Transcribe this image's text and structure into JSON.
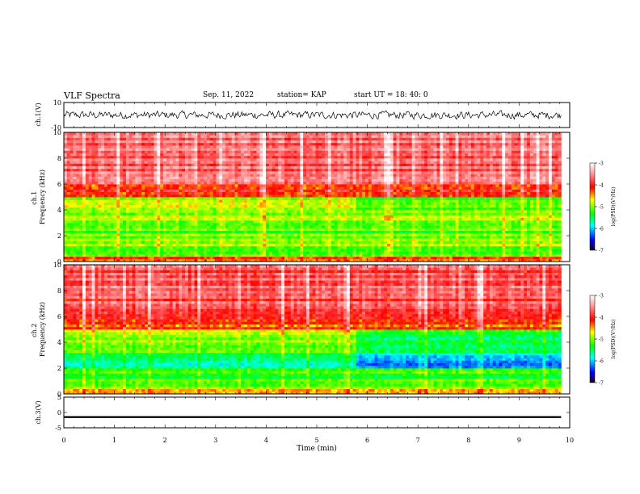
{
  "header": {
    "title": "VLF Spectra",
    "date": "Sep. 11, 2022",
    "station": "station= KAP",
    "start": "start  UT =   18: 40: 0"
  },
  "chart_data": [
    {
      "type": "line",
      "panel": "ch1-waveform",
      "ylabel": "ch.1(V)",
      "ylim": [
        -10,
        10
      ],
      "yticks": [
        "10",
        "-10"
      ],
      "xlim": [
        0,
        10
      ],
      "x_end": 9.83,
      "mean": 0.0,
      "noise_amplitude": 4.5
    },
    {
      "type": "heatmap",
      "panel": "ch1-spectrogram",
      "ylabel": "ch.1\nFrequency  (kHz)",
      "ylim": [
        0,
        10
      ],
      "yticks": [
        "0",
        "2",
        "4",
        "6",
        "8",
        "10"
      ],
      "xlim": [
        0,
        10
      ],
      "x_end": 9.83,
      "colorbar": {
        "label": "log(PSD)(V²/Hz)",
        "range": [
          -7,
          -3
        ],
        "ticks": [
          "-3",
          "-4",
          "-5",
          "-6",
          "-7"
        ]
      },
      "levels": [
        {
          "fmin": 0.0,
          "fmax": 0.5,
          "value": -4.2
        },
        {
          "fmin": 0.5,
          "fmax": 1.0,
          "value": -5.0
        },
        {
          "fmin": 1.0,
          "fmax": 2.0,
          "value": -5.1
        },
        {
          "fmin": 2.0,
          "fmax": 3.0,
          "value": -5.1
        },
        {
          "fmin": 3.0,
          "fmax": 4.0,
          "value": -5.0
        },
        {
          "fmin": 4.0,
          "fmax": 5.0,
          "value": -4.8
        },
        {
          "fmin": 5.0,
          "fmax": 6.0,
          "value": -4.1
        },
        {
          "fmin": 6.0,
          "fmax": 10.0,
          "value": -3.7
        }
      ],
      "change_time": 5.8,
      "after_change": [
        {
          "fmin": 4.0,
          "fmax": 5.0,
          "value": -5.1
        }
      ]
    },
    {
      "type": "heatmap",
      "panel": "ch2-spectrogram",
      "ylabel": "ch.2\nFrequency  (kHz)",
      "ylim": [
        0,
        10
      ],
      "yticks": [
        "0",
        "2",
        "4",
        "6",
        "8",
        "10"
      ],
      "xlim": [
        0,
        10
      ],
      "x_end": 9.83,
      "colorbar": {
        "label": "log(PSD)(V²/Hz)",
        "range": [
          -7,
          -3
        ],
        "ticks": [
          "-3",
          "-4",
          "-5",
          "-6",
          "-7"
        ]
      },
      "levels": [
        {
          "fmin": 0.0,
          "fmax": 0.5,
          "value": -4.6
        },
        {
          "fmin": 0.5,
          "fmax": 1.0,
          "value": -5.0
        },
        {
          "fmin": 1.0,
          "fmax": 2.0,
          "value": -5.2
        },
        {
          "fmin": 2.0,
          "fmax": 3.0,
          "value": -5.6
        },
        {
          "fmin": 3.0,
          "fmax": 4.0,
          "value": -5.3
        },
        {
          "fmin": 4.0,
          "fmax": 5.0,
          "value": -4.9
        },
        {
          "fmin": 5.0,
          "fmax": 6.0,
          "value": -4.2
        },
        {
          "fmin": 6.0,
          "fmax": 10.0,
          "value": -3.8
        }
      ],
      "change_time": 5.8,
      "after_change": [
        {
          "fmin": 2.0,
          "fmax": 3.0,
          "value": -6.1
        },
        {
          "fmin": 3.0,
          "fmax": 4.0,
          "value": -5.7
        },
        {
          "fmin": 4.0,
          "fmax": 5.0,
          "value": -5.4
        }
      ]
    },
    {
      "type": "line",
      "panel": "ch3-waveform",
      "ylabel": "ch.3(V)",
      "ylim": [
        -5,
        5
      ],
      "yticks": [
        "5",
        "0",
        "-5"
      ],
      "xlim": [
        0,
        10
      ],
      "x_end": 9.83,
      "mean": -1.5,
      "noise_amplitude": 0.3,
      "xlabel": "Time  (min)",
      "xticks": [
        "0",
        "1",
        "2",
        "3",
        "4",
        "5",
        "6",
        "7",
        "8",
        "9",
        "10"
      ]
    }
  ]
}
